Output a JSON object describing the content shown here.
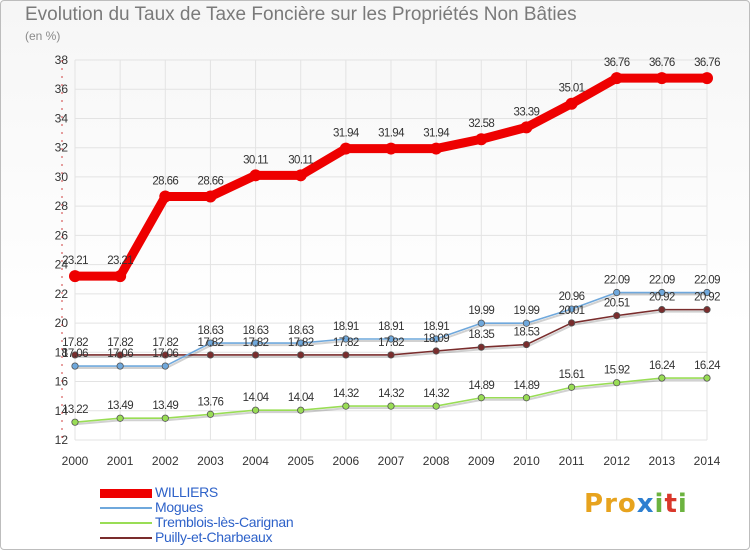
{
  "title": "Evolution du Taux de Taxe Foncière sur les Propriétés Non Bâties",
  "subtitle": "(en %)",
  "logo": {
    "text": "Proxiti",
    "colors": [
      "#e7a31e",
      "#2e7fd0",
      "#6cb33f",
      "#d9372b"
    ]
  },
  "chart_data": {
    "type": "line",
    "x": [
      "2000",
      "2001",
      "2002",
      "2003",
      "2004",
      "2005",
      "2006",
      "2007",
      "2008",
      "2009",
      "2010",
      "2011",
      "2012",
      "2013",
      "2014"
    ],
    "ylim": [
      12,
      38
    ],
    "yticks": [
      12,
      14,
      16,
      18,
      20,
      22,
      24,
      26,
      28,
      30,
      32,
      34,
      36,
      38
    ],
    "grid": true,
    "legend_position": "bottom-left",
    "series": [
      {
        "name": "WILLIERS",
        "color": "#ee0000",
        "values": [
          23.21,
          23.21,
          28.66,
          28.66,
          30.11,
          30.11,
          31.94,
          31.94,
          31.94,
          32.58,
          33.39,
          35.01,
          36.76,
          36.76,
          36.76
        ],
        "labels": [
          "23.21",
          "23.21",
          "28.66",
          "28.66",
          "30.11",
          "30.11",
          "31.94",
          "31.94",
          "31.94",
          "32.58",
          "33.39",
          "35.01",
          "36.76",
          "36.76",
          "36.76"
        ]
      },
      {
        "name": "Mogues",
        "color": "#6fa8dc",
        "values": [
          17.06,
          17.06,
          17.06,
          18.63,
          18.63,
          18.63,
          18.91,
          18.91,
          18.91,
          19.99,
          19.99,
          20.96,
          22.09,
          22.09,
          22.09
        ],
        "labels": [
          "17.06",
          "17.06",
          "17.06",
          "18.63",
          "18.63",
          "18.63",
          "18.91",
          "18.91",
          "18.91",
          "19.99",
          "19.99",
          "20.96",
          "22.09",
          "22.09",
          "22.09"
        ]
      },
      {
        "name": "Tremblois-lès-Carignan",
        "color": "#99dd55",
        "values": [
          13.22,
          13.49,
          13.49,
          13.76,
          14.04,
          14.04,
          14.32,
          14.32,
          14.32,
          14.89,
          14.89,
          15.61,
          15.92,
          16.24,
          16.24
        ],
        "labels": [
          "13.22",
          "13.49",
          "13.49",
          "13.76",
          "14.04",
          "14.04",
          "14.32",
          "14.32",
          "14.32",
          "14.89",
          "14.89",
          "15.61",
          "15.92",
          "16.24",
          "16.24"
        ]
      },
      {
        "name": "Puilly-et-Charbeaux",
        "color": "#7a2d2d",
        "values": [
          17.82,
          17.82,
          17.82,
          17.82,
          17.82,
          17.82,
          17.82,
          17.82,
          18.09,
          18.35,
          18.53,
          20.01,
          20.51,
          20.92,
          20.92
        ],
        "labels": [
          "17.82",
          "17.82",
          "17.82",
          "17.82",
          "17.82",
          "17.82",
          "17.82",
          "17.82",
          "18.09",
          "18.35",
          "18.53",
          "20.01",
          "20.51",
          "20.92",
          "20.92"
        ]
      }
    ]
  }
}
